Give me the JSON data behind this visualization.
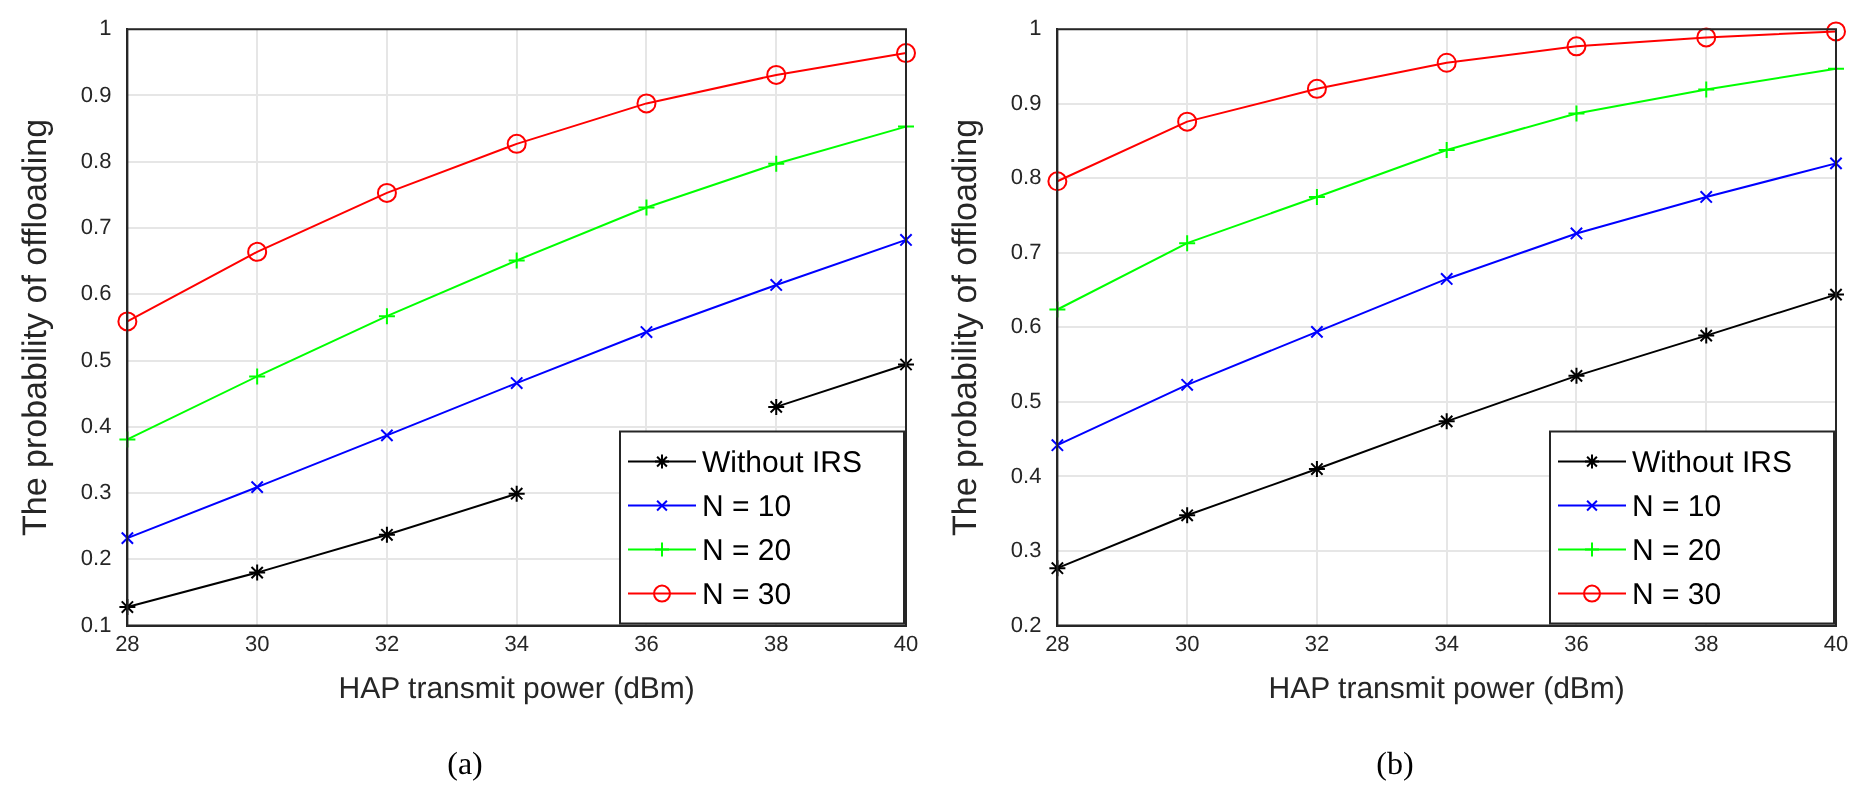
{
  "chart_data": [
    {
      "type": "line",
      "xlabel": "HAP transmit power (dBm)",
      "ylabel": "The probability of offloading",
      "x": [
        28,
        30,
        32,
        34,
        36,
        38,
        40
      ],
      "xlim": [
        28,
        40
      ],
      "xticks": [
        28,
        30,
        32,
        34,
        36,
        38,
        40
      ],
      "ylim": [
        0.1,
        1
      ],
      "yticks": [
        0.1,
        0.2,
        0.3,
        0.4,
        0.5,
        0.6,
        0.7,
        0.8,
        0.9,
        1
      ],
      "grid": true,
      "legend": "bottom right",
      "annotations": [
        "(a)"
      ],
      "series": [
        {
          "name": "Without IRS",
          "color": "#000000",
          "marker": "cross",
          "values": [
            0.128,
            0.18,
            0.237,
            0.299,
            null,
            0.43,
            0.494
          ]
        },
        {
          "name": "N = 10",
          "color": "#0000ff",
          "marker": "x",
          "values": [
            0.232,
            0.309,
            0.387,
            0.466,
            0.543,
            0.614,
            0.682
          ]
        },
        {
          "name": "N = 20",
          "color": "#00ff00",
          "marker": "plus",
          "values": [
            0.381,
            0.476,
            0.567,
            0.651,
            0.731,
            0.797,
            0.853
          ]
        },
        {
          "name": "N = 30",
          "color": "#ff0000",
          "marker": "circle",
          "values": [
            0.559,
            0.664,
            0.753,
            0.827,
            0.888,
            0.931,
            0.964
          ]
        }
      ]
    },
    {
      "type": "line",
      "xlabel": "HAP transmit power (dBm)",
      "ylabel": "The probability of offloading",
      "x": [
        28,
        30,
        32,
        34,
        36,
        38,
        40
      ],
      "xlim": [
        28,
        40
      ],
      "xticks": [
        28,
        30,
        32,
        34,
        36,
        38,
        40
      ],
      "ylim": [
        0.2,
        1
      ],
      "yticks": [
        0.2,
        0.3,
        0.4,
        0.5,
        0.6,
        0.7,
        0.8,
        0.9,
        1
      ],
      "grid": true,
      "legend": "bottom right",
      "annotations": [
        "(b)"
      ],
      "series": [
        {
          "name": "Without IRS",
          "color": "#000000",
          "marker": "cross",
          "values": [
            0.277,
            0.348,
            0.41,
            0.474,
            0.535,
            0.589,
            0.644
          ]
        },
        {
          "name": "N = 10",
          "color": "#0000ff",
          "marker": "x",
          "values": [
            0.442,
            0.523,
            0.594,
            0.665,
            0.726,
            0.775,
            0.82
          ]
        },
        {
          "name": "N = 20",
          "color": "#00ff00",
          "marker": "plus",
          "values": [
            0.624,
            0.713,
            0.775,
            0.838,
            0.887,
            0.919,
            0.947
          ]
        },
        {
          "name": "N = 30",
          "color": "#ff0000",
          "marker": "circle",
          "values": [
            0.796,
            0.876,
            0.92,
            0.955,
            0.977,
            0.989,
            0.997
          ]
        }
      ]
    }
  ]
}
